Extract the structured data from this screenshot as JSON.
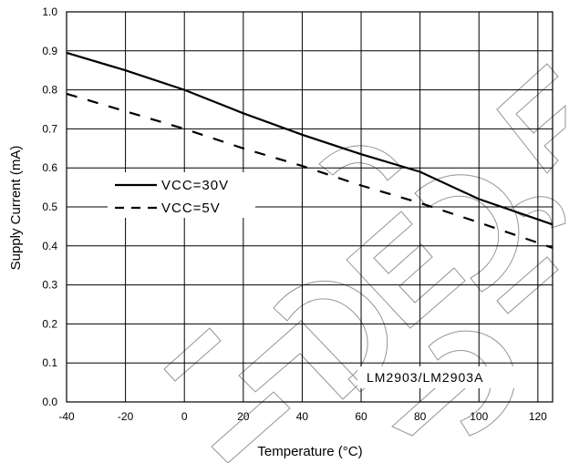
{
  "chart_data": {
    "type": "line",
    "xlabel": "Temperature (°C)",
    "ylabel": "Supply Current (mA)",
    "xlim": [
      -40,
      125
    ],
    "ylim": [
      0.0,
      1.0
    ],
    "x_ticks": [
      "-40",
      "-20",
      "0",
      "20",
      "40",
      "60",
      "80",
      "100",
      "120"
    ],
    "x_tick_values": [
      -40,
      -20,
      0,
      20,
      40,
      60,
      80,
      100,
      120
    ],
    "y_ticks": [
      "0.0",
      "0.1",
      "0.2",
      "0.3",
      "0.4",
      "0.5",
      "0.6",
      "0.7",
      "0.8",
      "0.9",
      "1.0"
    ],
    "y_tick_values": [
      0.0,
      0.1,
      0.2,
      0.3,
      0.4,
      0.5,
      0.6,
      0.7,
      0.8,
      0.9,
      1.0
    ],
    "grid": true,
    "legend_position": "middle-left",
    "series": [
      {
        "name": "VCC=30V",
        "style": "solid",
        "color": "#000000",
        "x": [
          -40,
          -20,
          0,
          20,
          40,
          60,
          80,
          100,
          125
        ],
        "y": [
          0.895,
          0.85,
          0.8,
          0.74,
          0.685,
          0.635,
          0.59,
          0.52,
          0.455
        ]
      },
      {
        "name": "VCC=5V",
        "style": "dashed",
        "color": "#000000",
        "x": [
          -40,
          -20,
          0,
          20,
          40,
          60,
          80,
          100,
          125
        ],
        "y": [
          0.79,
          0.745,
          0.7,
          0.65,
          0.605,
          0.555,
          0.51,
          0.46,
          0.395
        ]
      }
    ],
    "annotation": "LM2903/LM2903A",
    "watermark": "NOT RECOMMENDED FOR NEW DESIGNS"
  }
}
